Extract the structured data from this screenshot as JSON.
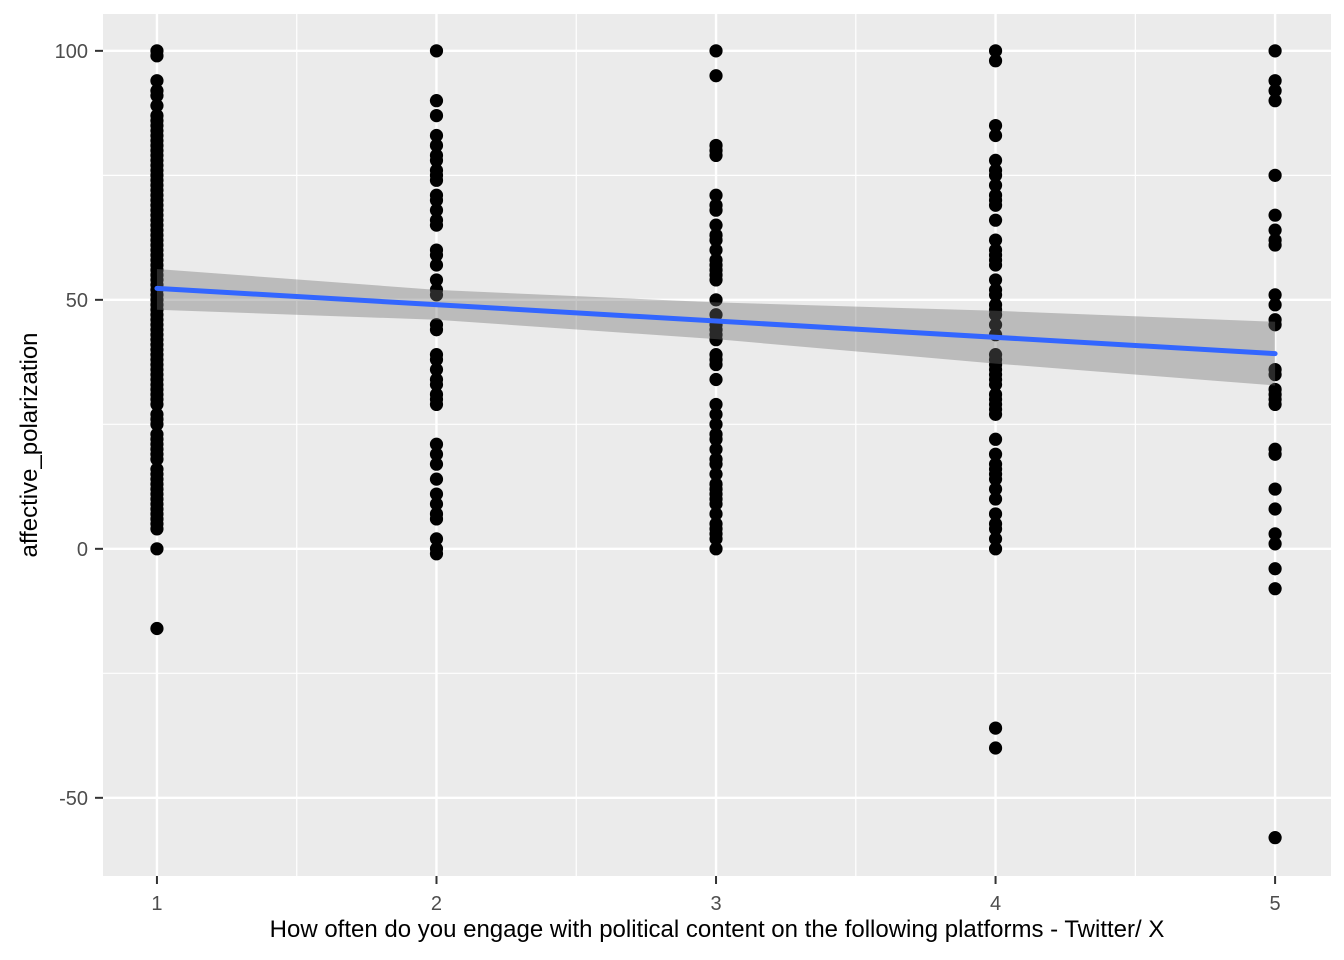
{
  "figure": {
    "background": "#FFFFFF"
  },
  "chart_data": {
    "type": "scatter",
    "title": "",
    "xlabel": "How often do you engage with political content on the following platforms - Twitter/ X",
    "ylabel": "affective_polarization",
    "x_ticks": [
      1,
      2,
      3,
      4,
      5
    ],
    "y_ticks": [
      -50,
      0,
      50,
      100
    ],
    "xlim": [
      0.807,
      5.2
    ],
    "ylim": [
      -65.7,
      107.4
    ],
    "grid": true,
    "legend": "none",
    "panel_bg": "#EBEBEB",
    "grid_color": "#FFFFFF",
    "tick_color": "#333333",
    "tick_label_color": "#4D4D4D",
    "point_color": "#000000",
    "trend": {
      "model": "lm",
      "color": "#3366FF",
      "x": [
        1,
        5
      ],
      "y": [
        52.3,
        39.2
      ]
    },
    "ci_band": {
      "color": "#6E6E6E",
      "opacity": 0.38,
      "x": [
        1,
        2,
        3,
        4,
        5
      ],
      "upper": [
        56.2,
        52.0,
        49.5,
        47.8,
        45.6
      ],
      "lower": [
        48.0,
        46.0,
        42.1,
        37.2,
        32.8
      ]
    },
    "series": [
      {
        "name": "x=1",
        "x": 1,
        "y_values": [
          100,
          99,
          94,
          92,
          91,
          89,
          87,
          86,
          85,
          84,
          83,
          82,
          81,
          80,
          79,
          78,
          77,
          76,
          75,
          74,
          73,
          72,
          71,
          70,
          69,
          68,
          67,
          66,
          65,
          64,
          63,
          62,
          61,
          60,
          59,
          58,
          57,
          56,
          55,
          54,
          53,
          52,
          51,
          50,
          49,
          48,
          47,
          46,
          45,
          44,
          43,
          42,
          41,
          40,
          39,
          38,
          37,
          36,
          35,
          34,
          33,
          32,
          31,
          30,
          29,
          27,
          26,
          25,
          23,
          22,
          21,
          20,
          19,
          18,
          16,
          15,
          14,
          13,
          12,
          11,
          10,
          9,
          8,
          7,
          6,
          5,
          4,
          0,
          -16
        ]
      },
      {
        "name": "x=2",
        "x": 2,
        "y_values": [
          100,
          90,
          87,
          83,
          81,
          79,
          78,
          76,
          75,
          74,
          71,
          70,
          68,
          66,
          65,
          60,
          59,
          57,
          54,
          52,
          51,
          45,
          44,
          39,
          38,
          36,
          34,
          33,
          31,
          30,
          29,
          21,
          19,
          17,
          14,
          11,
          9,
          7,
          6,
          2,
          0,
          -1
        ]
      },
      {
        "name": "x=3",
        "x": 3,
        "y_values": [
          100,
          95,
          81,
          80,
          79,
          71,
          69,
          68,
          65,
          63,
          62,
          60,
          58,
          57,
          56,
          55,
          54,
          50,
          47,
          45,
          44,
          43,
          42,
          39,
          38,
          37,
          34,
          29,
          27,
          25,
          23,
          22,
          20,
          18,
          17,
          15,
          13,
          12,
          11,
          10,
          9,
          7,
          5,
          4,
          3,
          2,
          0
        ]
      },
      {
        "name": "x=4",
        "x": 4,
        "y_values": [
          100,
          98,
          85,
          83,
          78,
          76,
          75,
          73,
          71,
          70,
          69,
          66,
          62,
          60,
          59,
          58,
          57,
          54,
          52,
          51,
          49,
          48,
          47,
          45,
          43,
          39,
          38,
          37,
          36,
          35,
          34,
          33,
          31,
          30,
          29,
          28,
          27,
          22,
          19,
          17,
          16,
          15,
          14,
          12,
          10,
          7,
          5,
          4,
          2,
          0,
          -36,
          -40
        ]
      },
      {
        "name": "x=5",
        "x": 5,
        "y_values": [
          100,
          94,
          92,
          90,
          75,
          67,
          64,
          62,
          61,
          51,
          49,
          46,
          45,
          36,
          35,
          32,
          31,
          30,
          29,
          20,
          19,
          12,
          8,
          3,
          1,
          -4,
          -8,
          -58
        ]
      }
    ]
  }
}
